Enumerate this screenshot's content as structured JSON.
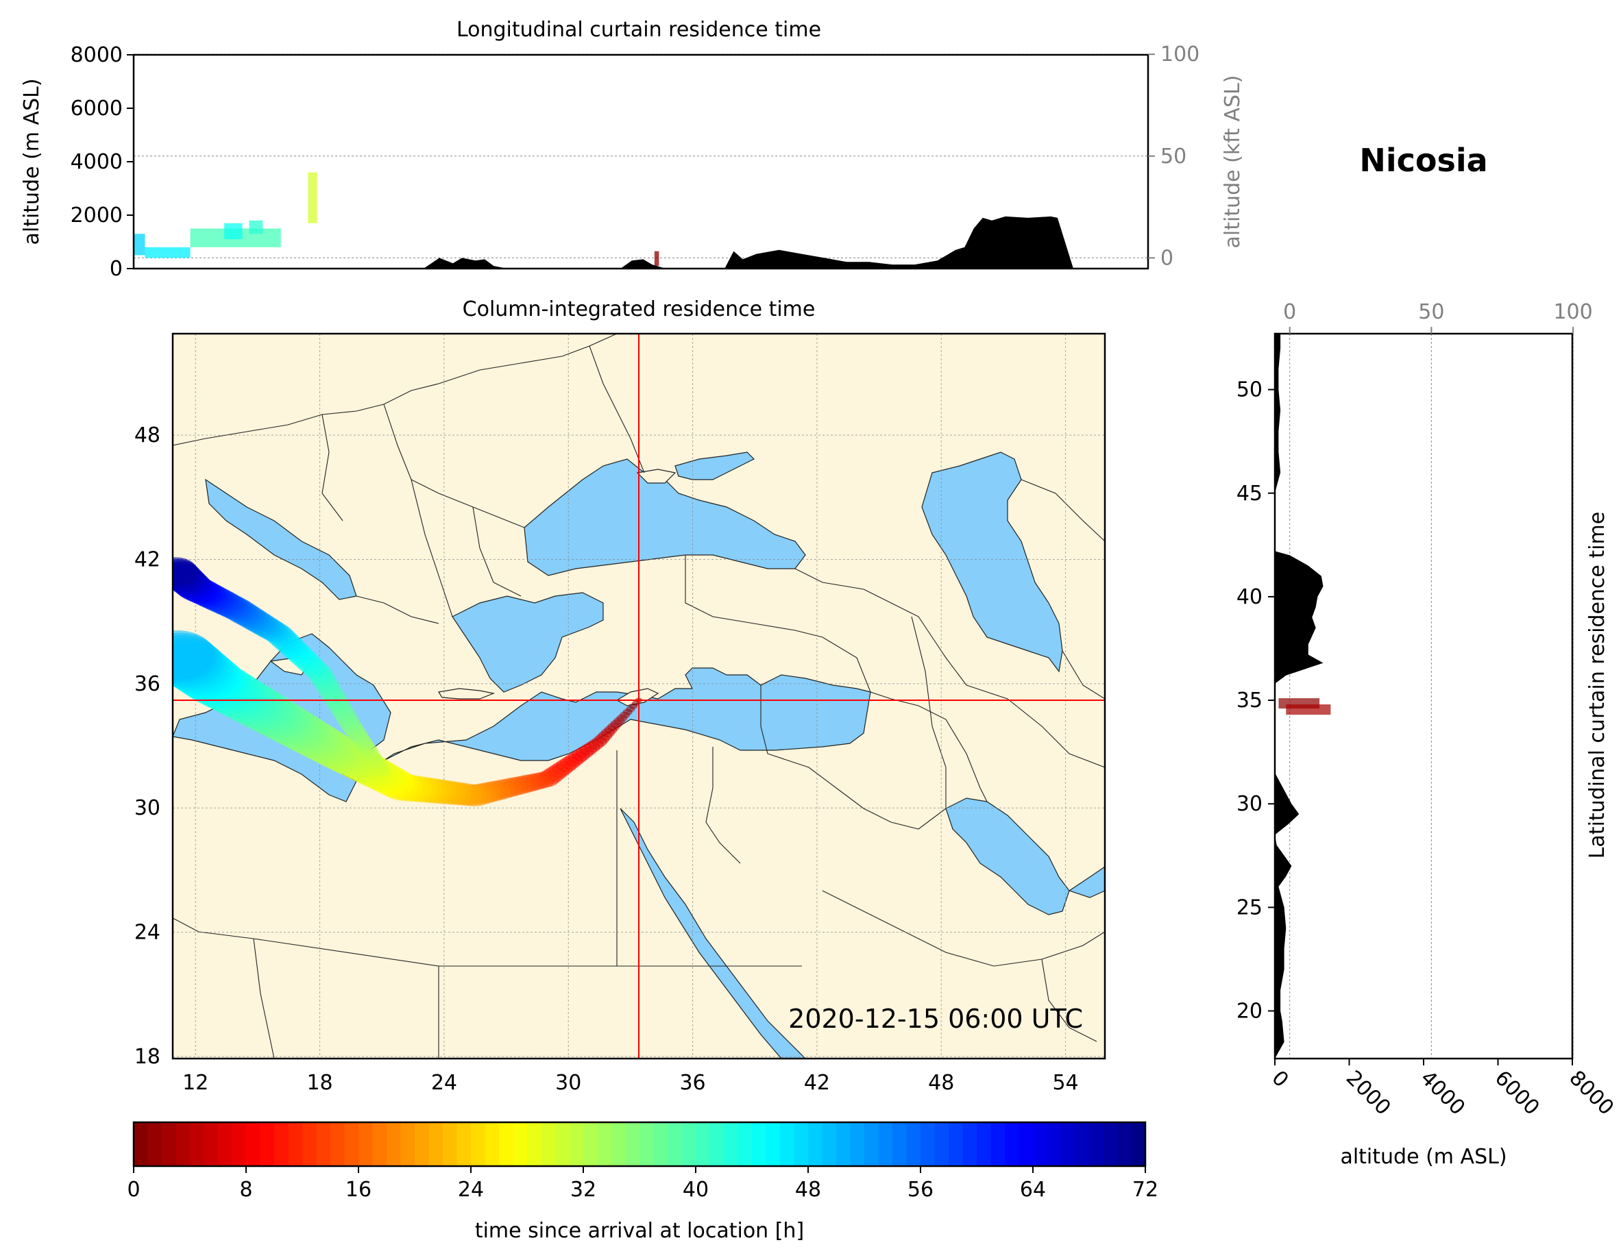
{
  "location_title": "Nicosia",
  "timestamp": "2020-12-15 06:00 UTC",
  "colors": {
    "land": "#fdf5dc",
    "sea": "#87cefa",
    "terrain": "#000000",
    "crosshair": "#ff0000",
    "border": "#222222"
  },
  "chart_data": [
    {
      "id": "longitudinal",
      "type": "area",
      "title": "Longitudinal curtain residence time",
      "ylabel": "altitude (m ASL)",
      "ylabel_right": "altitude (kft ASL)",
      "xlim": [
        10.5,
        55.3
      ],
      "ylim": [
        0,
        8000
      ],
      "yticks": [
        "0",
        "2000",
        "4000",
        "6000",
        "8000"
      ],
      "yticks_right": [
        "0",
        "50",
        "100"
      ],
      "grid": true,
      "terrain": {
        "x": [
          10.5,
          23.3,
          24,
          24.6,
          25,
          25.6,
          26,
          26.4,
          27,
          29,
          32,
          32.5,
          33,
          33.4,
          34,
          36,
          36.6,
          37,
          37.4,
          38,
          39,
          40,
          41,
          42,
          43,
          44,
          45,
          46,
          46.8,
          47.2,
          47.6,
          48,
          48.4,
          49,
          50,
          51,
          51.3,
          52,
          55.3
        ],
        "y": [
          0,
          0,
          400,
          200,
          400,
          300,
          350,
          100,
          0,
          0,
          0,
          300,
          350,
          150,
          0,
          0,
          0,
          650,
          350,
          550,
          700,
          550,
          400,
          250,
          250,
          150,
          150,
          300,
          700,
          800,
          1500,
          1900,
          1800,
          1950,
          1900,
          1950,
          1900,
          0,
          0
        ]
      },
      "plume": [
        {
          "x0": 10.5,
          "x1": 11,
          "y0": 500,
          "y1": 1300,
          "t": 48
        },
        {
          "x0": 11,
          "x1": 13,
          "y0": 400,
          "y1": 800,
          "t": 46
        },
        {
          "x0": 13,
          "x1": 17,
          "y0": 800,
          "y1": 1500,
          "t": 40
        },
        {
          "x0": 14.5,
          "x1": 15.3,
          "y0": 1100,
          "y1": 1700,
          "t": 44
        },
        {
          "x0": 15.6,
          "x1": 16.2,
          "y0": 1300,
          "y1": 1800,
          "t": 42
        },
        {
          "x0": 18.2,
          "x1": 18.6,
          "y0": 1700,
          "y1": 3600,
          "t": 30
        },
        {
          "x0": 33.5,
          "x1": 33.7,
          "y0": 100,
          "y1": 650,
          "t": 1
        }
      ]
    },
    {
      "id": "column",
      "type": "heatmap",
      "title": "Column-integrated residence time",
      "xlim": [
        10.9,
        55.9
      ],
      "ylim": [
        17.9,
        52.9
      ],
      "xticks": [
        "12",
        "18",
        "24",
        "30",
        "36",
        "42",
        "48",
        "54"
      ],
      "yticks": [
        "18",
        "24",
        "30",
        "36",
        "42",
        "48"
      ],
      "crosshair": {
        "lon": 33.4,
        "lat": 35.2
      },
      "grid": true,
      "trajectory": [
        {
          "lon": 33.4,
          "lat": 35.2,
          "t": 0
        },
        {
          "lon": 31.5,
          "lat": 33.2,
          "t": 6
        },
        {
          "lon": 29,
          "lat": 31.4,
          "t": 12
        },
        {
          "lon": 25.5,
          "lat": 30.6,
          "t": 20
        },
        {
          "lon": 22,
          "lat": 31,
          "t": 26
        },
        {
          "lon": 19,
          "lat": 32.6,
          "t": 32
        },
        {
          "lon": 16,
          "lat": 34.3,
          "t": 38
        },
        {
          "lon": 13,
          "lat": 36,
          "t": 44
        },
        {
          "lon": 11,
          "lat": 37.5,
          "t": 50
        }
      ],
      "branch": [
        {
          "lon": 21,
          "lat": 31.8,
          "t": 30
        },
        {
          "lon": 19.5,
          "lat": 34,
          "t": 36
        },
        {
          "lon": 18,
          "lat": 36.5,
          "t": 42
        },
        {
          "lon": 16,
          "lat": 38.4,
          "t": 48
        },
        {
          "lon": 14,
          "lat": 39.6,
          "t": 56
        },
        {
          "lon": 12,
          "lat": 40.6,
          "t": 64
        },
        {
          "lon": 11,
          "lat": 41.5,
          "t": 70
        }
      ]
    },
    {
      "id": "latitudinal",
      "type": "area",
      "title": "Latitudinal curtain residence time",
      "xlabel": "altitude (m ASL)",
      "xlim": [
        0,
        8000
      ],
      "ylim": [
        17.7,
        52.7
      ],
      "xticks": [
        "0",
        "2000",
        "4000",
        "6000",
        "8000"
      ],
      "xticks_top": [
        "0",
        "50",
        "100"
      ],
      "yticks": [
        "20",
        "25",
        "30",
        "35",
        "40",
        "45",
        "50"
      ],
      "grid": true,
      "terrain": {
        "lat": [
          17.7,
          18.5,
          19.5,
          20,
          21,
          22,
          23,
          24,
          25,
          26,
          26.5,
          27,
          27.5,
          28,
          28.5,
          29,
          29.5,
          30,
          30.5,
          31,
          31.5,
          32,
          35.8,
          36.2,
          36.8,
          37.2,
          37.7,
          38.5,
          39,
          39.5,
          40,
          40.5,
          41,
          41.5,
          42,
          42.2,
          44,
          45,
          46,
          47,
          48,
          49,
          50,
          51,
          52,
          52.7
        ],
        "alt": [
          0,
          250,
          200,
          150,
          150,
          250,
          250,
          300,
          250,
          100,
          300,
          450,
          250,
          50,
          0,
          350,
          650,
          450,
          300,
          150,
          0,
          0,
          0,
          300,
          1300,
          900,
          900,
          1100,
          1000,
          1100,
          1150,
          1300,
          1250,
          900,
          400,
          0,
          0,
          0,
          150,
          100,
          100,
          150,
          100,
          100,
          150,
          150
        ]
      },
      "plume": [
        {
          "lat0": 34.6,
          "lat1": 35.1,
          "alt0": 100,
          "alt1": 1200,
          "t": 1
        },
        {
          "lat0": 34.3,
          "lat1": 34.8,
          "alt0": 300,
          "alt1": 1500,
          "t": 3
        }
      ]
    },
    {
      "id": "colorbar",
      "type": "heatmap",
      "xlabel": "time since arrival at location [h]",
      "range": [
        0,
        72
      ],
      "ticks": [
        "0",
        "8",
        "16",
        "24",
        "32",
        "40",
        "48",
        "56",
        "64",
        "72"
      ],
      "colormap": "jet_r"
    }
  ]
}
